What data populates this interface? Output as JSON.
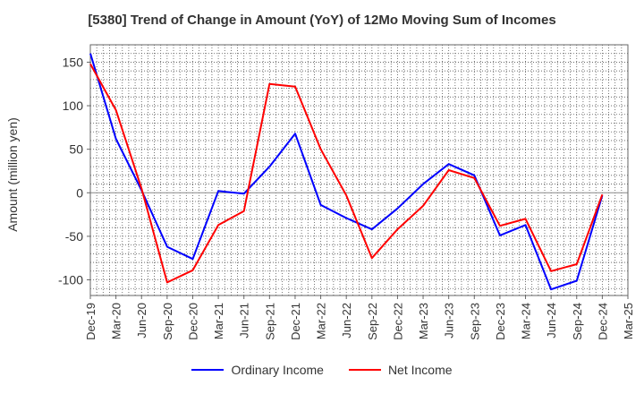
{
  "chart_data": {
    "type": "line",
    "title": "[5380]  Trend of Change in Amount (YoY) of 12Mo Moving Sum of Incomes",
    "ylabel": "Amount (million yen)",
    "xlabel": "",
    "categories": [
      "Dec-19",
      "Mar-20",
      "Jun-20",
      "Sep-20",
      "Dec-20",
      "Mar-21",
      "Jun-21",
      "Sep-21",
      "Dec-21",
      "Mar-22",
      "Jun-22",
      "Sep-22",
      "Dec-22",
      "Mar-23",
      "Jun-23",
      "Sep-23",
      "Dec-23",
      "Mar-24",
      "Jun-24",
      "Sep-24",
      "Dec-24",
      "Mar-25"
    ],
    "yticks": [
      150,
      100,
      50,
      0,
      -50,
      -100
    ],
    "ylim": [
      -118,
      170
    ],
    "grid": true,
    "legend_position": "bottom",
    "series": [
      {
        "name": "Ordinary Income",
        "color": "#0000ff",
        "values": [
          160,
          62,
          3,
          -62,
          -76,
          2,
          -1,
          30,
          68,
          -14,
          -29,
          -42,
          -18,
          10,
          33,
          20,
          -49,
          -37,
          -111,
          -101,
          -3,
          null
        ]
      },
      {
        "name": "Net Income",
        "color": "#ff0000",
        "values": [
          148,
          95,
          5,
          -103,
          -89,
          -37,
          -21,
          125,
          122,
          50,
          -3,
          -75,
          -42,
          -15,
          26,
          17,
          -38,
          -30,
          -90,
          -82,
          -2,
          null
        ]
      }
    ]
  }
}
